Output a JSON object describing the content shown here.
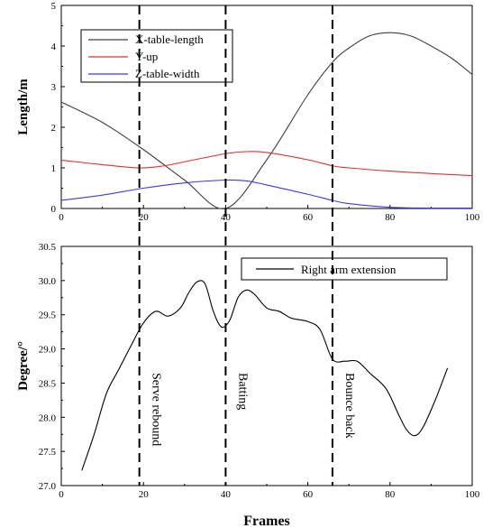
{
  "chart_data": [
    {
      "type": "line",
      "xlabel": "",
      "ylabel": "Length/m",
      "xlim": [
        0,
        100
      ],
      "ylim": [
        0,
        5
      ],
      "x_ticks": [
        0,
        20,
        40,
        60,
        80,
        100
      ],
      "y_ticks": [
        0,
        1,
        2,
        3,
        4,
        5
      ],
      "legend_position": "top-left",
      "grid": false,
      "series": [
        {
          "name": "X-table-length",
          "color": "#404040",
          "points": [
            [
              0,
              2.62
            ],
            [
              10,
              2.12
            ],
            [
              20,
              1.45
            ],
            [
              30,
              0.7
            ],
            [
              40,
              0.0
            ],
            [
              50,
              1.2
            ],
            [
              60,
              2.8
            ],
            [
              66,
              3.6
            ],
            [
              70,
              3.95
            ],
            [
              75,
              4.25
            ],
            [
              80,
              4.33
            ],
            [
              85,
              4.25
            ],
            [
              90,
              4.0
            ],
            [
              95,
              3.7
            ],
            [
              100,
              3.3
            ]
          ]
        },
        {
          "name": "Y-up",
          "color": "#e03030",
          "points": [
            [
              0,
              1.19
            ],
            [
              10,
              1.08
            ],
            [
              19,
              1.0
            ],
            [
              25,
              1.05
            ],
            [
              30,
              1.15
            ],
            [
              40,
              1.35
            ],
            [
              45,
              1.4
            ],
            [
              50,
              1.38
            ],
            [
              60,
              1.2
            ],
            [
              66,
              1.05
            ],
            [
              70,
              1.0
            ],
            [
              80,
              0.92
            ],
            [
              90,
              0.86
            ],
            [
              100,
              0.81
            ]
          ]
        },
        {
          "name": "Z-table-width",
          "color": "#3a3ae8",
          "points": [
            [
              0,
              0.2
            ],
            [
              10,
              0.33
            ],
            [
              20,
              0.5
            ],
            [
              30,
              0.63
            ],
            [
              40,
              0.7
            ],
            [
              45,
              0.68
            ],
            [
              50,
              0.58
            ],
            [
              60,
              0.35
            ],
            [
              66,
              0.2
            ],
            [
              70,
              0.12
            ],
            [
              80,
              0.03
            ],
            [
              90,
              0.01
            ],
            [
              100,
              0.01
            ]
          ]
        }
      ],
      "vertical_lines_x": [
        19,
        40,
        66
      ]
    },
    {
      "type": "line",
      "xlabel": "Frames",
      "ylabel": "Degree/°",
      "xlim": [
        0,
        100
      ],
      "ylim": [
        27.0,
        30.5
      ],
      "x_ticks": [
        0,
        20,
        40,
        60,
        80,
        100
      ],
      "y_ticks": [
        27.0,
        27.5,
        28.0,
        28.5,
        29.0,
        29.5,
        30.0,
        30.5
      ],
      "legend_position": "top-right",
      "grid": false,
      "series": [
        {
          "name": "Right arm extension",
          "color": "#000000",
          "points": [
            [
              5,
              27.22
            ],
            [
              8,
              27.75
            ],
            [
              11,
              28.35
            ],
            [
              14,
              28.7
            ],
            [
              17,
              29.05
            ],
            [
              20,
              29.38
            ],
            [
              23,
              29.55
            ],
            [
              26,
              29.48
            ],
            [
              29,
              29.6
            ],
            [
              31,
              29.82
            ],
            [
              33,
              29.98
            ],
            [
              35,
              29.95
            ],
            [
              37,
              29.55
            ],
            [
              39,
              29.32
            ],
            [
              41,
              29.42
            ],
            [
              43,
              29.75
            ],
            [
              45,
              29.86
            ],
            [
              47,
              29.8
            ],
            [
              50,
              29.6
            ],
            [
              53,
              29.55
            ],
            [
              56,
              29.45
            ],
            [
              60,
              29.4
            ],
            [
              63,
              29.28
            ],
            [
              66,
              28.85
            ],
            [
              69,
              28.82
            ],
            [
              72,
              28.82
            ],
            [
              75,
              28.65
            ],
            [
              79,
              28.42
            ],
            [
              82,
              28.05
            ],
            [
              84,
              27.82
            ],
            [
              86,
              27.73
            ],
            [
              88,
              27.85
            ],
            [
              91,
              28.25
            ],
            [
              94,
              28.72
            ]
          ]
        }
      ],
      "vertical_lines_x": [
        19,
        40,
        66
      ],
      "annotations": [
        {
          "x": 19,
          "text": "Serve rebound"
        },
        {
          "x": 40,
          "text": "Batting"
        },
        {
          "x": 66,
          "text": "Bounce back"
        }
      ]
    }
  ]
}
